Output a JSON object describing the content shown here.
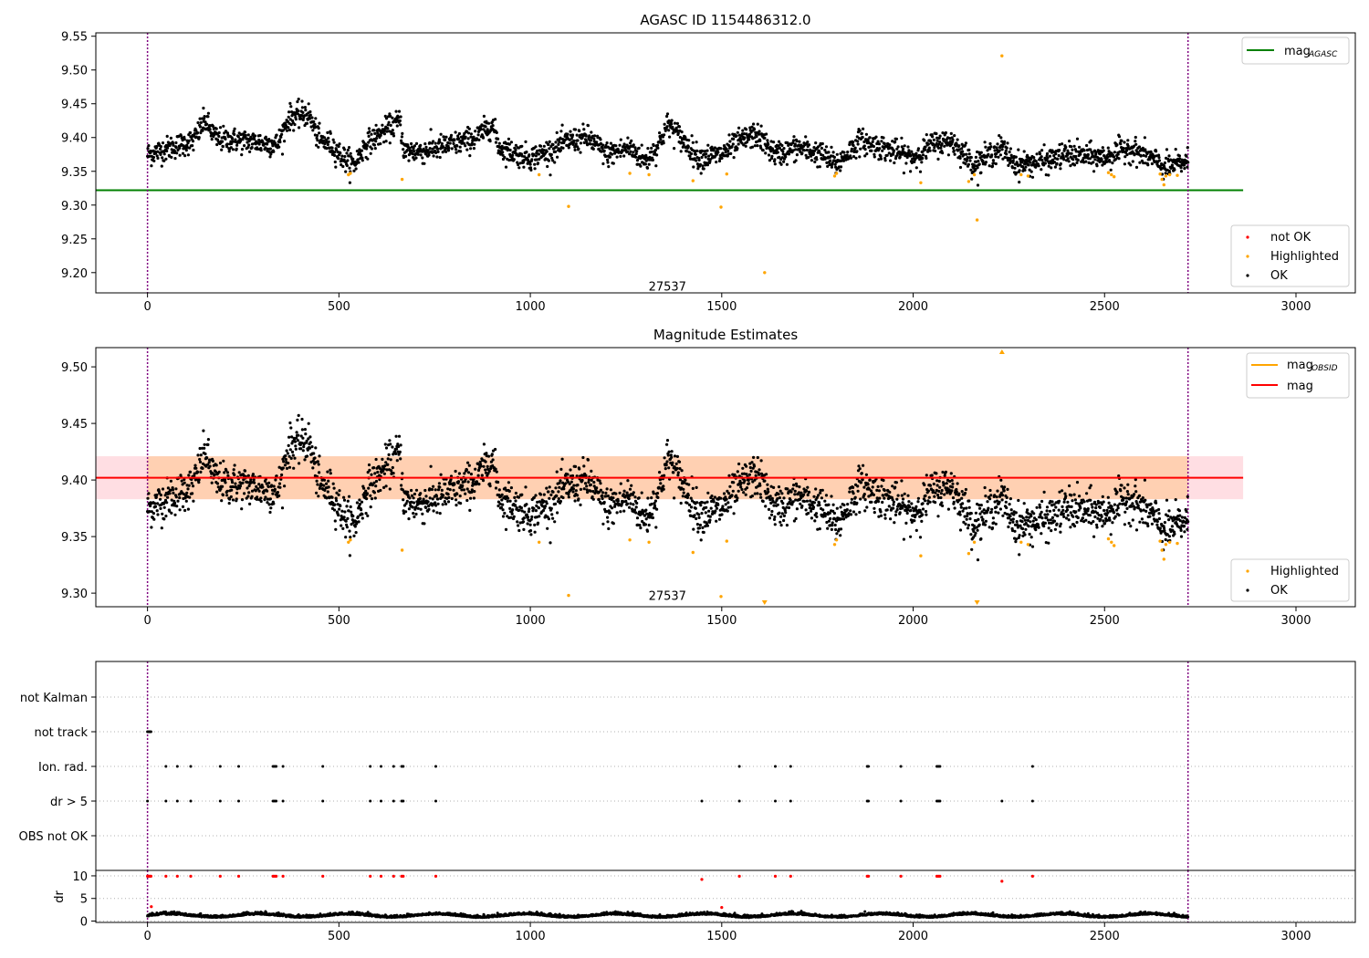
{
  "chart_data": [
    {
      "type": "scatter",
      "title": "AGASC ID 1154486312.0",
      "xlim": [
        -135,
        3155
      ],
      "ylim": [
        9.17,
        9.555
      ],
      "xticks": [
        0,
        500,
        1000,
        1500,
        2000,
        2500,
        3000
      ],
      "yticks": [
        9.2,
        9.25,
        9.3,
        9.35,
        9.4,
        9.45,
        9.5,
        9.55
      ],
      "vlines": [
        0,
        2718
      ],
      "vline_color": "#800080",
      "hline": {
        "name": "mag",
        "subscript": "AGASC",
        "y": 9.322,
        "x_end": 2862,
        "color": "#008000"
      },
      "annotation": {
        "text": "27537",
        "x": 1358,
        "y": 9.18
      },
      "legend_lines": [
        {
          "name": "mag",
          "subscript": "AGASC",
          "color": "#008000"
        }
      ],
      "legend_points": [
        {
          "name": "not OK",
          "color": "#ff0000"
        },
        {
          "name": "Highlighted",
          "color": "#ffa500"
        },
        {
          "name": "OK",
          "color": "#000000"
        }
      ],
      "ok_series": {
        "name": "OK",
        "color": "#000000",
        "x_range": [
          0,
          2718
        ],
        "n_points": 2700,
        "trend": [
          [
            0,
            9.375
          ],
          [
            60,
            9.385
          ],
          [
            120,
            9.395
          ],
          [
            150,
            9.425
          ],
          [
            180,
            9.398
          ],
          [
            250,
            9.395
          ],
          [
            300,
            9.392
          ],
          [
            340,
            9.39
          ],
          [
            370,
            9.43
          ],
          [
            420,
            9.435
          ],
          [
            450,
            9.395
          ],
          [
            480,
            9.39
          ],
          [
            510,
            9.37
          ],
          [
            540,
            9.36
          ],
          [
            570,
            9.39
          ],
          [
            620,
            9.41
          ],
          [
            660,
            9.425
          ],
          [
            670,
            9.38
          ],
          [
            720,
            9.38
          ],
          [
            800,
            9.39
          ],
          [
            860,
            9.4
          ],
          [
            900,
            9.42
          ],
          [
            920,
            9.385
          ],
          [
            1000,
            9.37
          ],
          [
            1050,
            9.38
          ],
          [
            1100,
            9.395
          ],
          [
            1150,
            9.4
          ],
          [
            1200,
            9.375
          ],
          [
            1260,
            9.385
          ],
          [
            1300,
            9.365
          ],
          [
            1330,
            9.385
          ],
          [
            1360,
            9.42
          ],
          [
            1400,
            9.395
          ],
          [
            1440,
            9.37
          ],
          [
            1500,
            9.375
          ],
          [
            1550,
            9.395
          ],
          [
            1590,
            9.405
          ],
          [
            1640,
            9.375
          ],
          [
            1700,
            9.385
          ],
          [
            1760,
            9.375
          ],
          [
            1800,
            9.36
          ],
          [
            1860,
            9.395
          ],
          [
            1920,
            9.385
          ],
          [
            2000,
            9.37
          ],
          [
            2050,
            9.39
          ],
          [
            2100,
            9.395
          ],
          [
            2160,
            9.36
          ],
          [
            2230,
            9.385
          ],
          [
            2270,
            9.36
          ],
          [
            2350,
            9.365
          ],
          [
            2400,
            9.375
          ],
          [
            2500,
            9.37
          ],
          [
            2560,
            9.385
          ],
          [
            2620,
            9.37
          ],
          [
            2660,
            9.355
          ],
          [
            2718,
            9.365
          ]
        ]
      },
      "highlighted_series": {
        "name": "Highlighted",
        "color": "#ffa500",
        "x": [
          525,
          530,
          665,
          1023,
          1100,
          1260,
          1310,
          1425,
          1498,
          1513,
          1612,
          1795,
          1800,
          2020,
          2145,
          2160,
          2167,
          2232,
          2282,
          2300,
          2510,
          2518,
          2525,
          2645,
          2650,
          2655,
          2660,
          2670,
          2690
        ],
        "y": [
          9.345,
          9.347,
          9.338,
          9.345,
          9.298,
          9.347,
          9.345,
          9.336,
          9.297,
          9.346,
          9.2,
          9.343,
          9.347,
          9.333,
          9.335,
          9.345,
          9.278,
          9.521,
          9.345,
          9.343,
          9.348,
          9.345,
          9.342,
          9.346,
          9.338,
          9.33,
          9.343,
          9.345,
          9.344
        ]
      },
      "not_ok_series": {
        "name": "not OK",
        "color": "#ff0000",
        "x": [],
        "y": []
      }
    },
    {
      "type": "scatter",
      "title": "Magnitude Estimates",
      "xlim": [
        -135,
        3155
      ],
      "ylim": [
        9.288,
        9.517
      ],
      "xticks": [
        0,
        500,
        1000,
        1500,
        2000,
        2500,
        3000
      ],
      "yticks": [
        9.3,
        9.35,
        9.4,
        9.45,
        9.5
      ],
      "vlines": [
        0,
        2718
      ],
      "vline_color": "#800080",
      "mag_line": {
        "name": "mag",
        "y": 9.402,
        "x_end": 2862,
        "color": "#ff0000"
      },
      "band": {
        "y_low": 9.383,
        "y_high": 9.421,
        "x_end": 2862,
        "color": "#ffb6c1"
      },
      "obsid_band": {
        "y_low": 9.383,
        "y_high": 9.421,
        "x_start": 0,
        "x_end": 2718,
        "color": "#ffc58a"
      },
      "annotation": {
        "text": "27537",
        "x": 1358,
        "y": 9.298
      },
      "legend_lines": [
        {
          "name": "mag",
          "subscript": "OBSID",
          "color": "#ffa500"
        },
        {
          "name": "mag",
          "subscript": "",
          "color": "#ff0000"
        }
      ],
      "legend_points": [
        {
          "name": "Highlighted",
          "color": "#ffa500"
        },
        {
          "name": "OK",
          "color": "#000000"
        }
      ],
      "off_scale_markers": {
        "x": [
          1612,
          2167,
          2232
        ],
        "edge": [
          "bottom",
          "bottom",
          "top"
        ],
        "color": "#ffa500"
      }
    },
    {
      "type": "scatter",
      "xlim": [
        -135,
        3155
      ],
      "categories": [
        "OBS not OK",
        "dr > 5",
        "Ion. rad.",
        "not track",
        "not Kalman"
      ],
      "events": {
        "not track": [
          0,
          3,
          6,
          9
        ],
        "Ion. rad.": [
          48,
          78,
          113,
          190,
          238,
          328,
          332,
          336,
          354,
          458,
          582,
          610,
          643,
          664,
          668,
          753,
          1546,
          1640,
          1680,
          1880,
          1883,
          1968,
          2062,
          2066,
          2070,
          2312
        ],
        "dr > 5": [
          0,
          48,
          78,
          113,
          190,
          238,
          328,
          332,
          336,
          354,
          458,
          582,
          610,
          643,
          664,
          668,
          753,
          1448,
          1546,
          1640,
          1680,
          1880,
          1883,
          1968,
          2062,
          2066,
          2070,
          2232,
          2312
        ]
      },
      "vlines": [
        0,
        2718
      ],
      "vline_color": "#800080"
    },
    {
      "type": "scatter",
      "ylabel": "dr",
      "xlim": [
        -135,
        3155
      ],
      "ylim": [
        -0.3,
        11.2
      ],
      "xticks": [
        0,
        500,
        1000,
        1500,
        2000,
        2500,
        3000
      ],
      "yticks": [
        0,
        5,
        10
      ],
      "vlines": [
        0,
        2718
      ],
      "vline_color": "#800080",
      "dr_base": {
        "x_range": [
          0,
          2718
        ],
        "mean": 1.2,
        "amplitude": 0.7,
        "color": "#000000"
      },
      "dr_outliers": {
        "x": [
          0,
          3,
          6,
          9,
          48,
          78,
          113,
          190,
          238,
          328,
          332,
          336,
          354,
          458,
          582,
          610,
          643,
          664,
          668,
          753,
          1448,
          1546,
          1640,
          1680,
          1880,
          1883,
          1968,
          2062,
          2066,
          2070,
          2232,
          2312,
          1500,
          10
        ],
        "y": [
          9.9,
          9.9,
          9.9,
          9.9,
          9.9,
          9.9,
          9.9,
          9.9,
          9.9,
          9.9,
          9.9,
          9.9,
          9.9,
          9.9,
          9.9,
          9.9,
          9.9,
          9.9,
          9.9,
          9.9,
          9.2,
          9.9,
          9.9,
          9.9,
          9.9,
          9.9,
          9.9,
          9.9,
          9.9,
          9.9,
          8.8,
          9.9,
          3.0,
          3.2
        ],
        "color": "#ff0000"
      }
    }
  ]
}
